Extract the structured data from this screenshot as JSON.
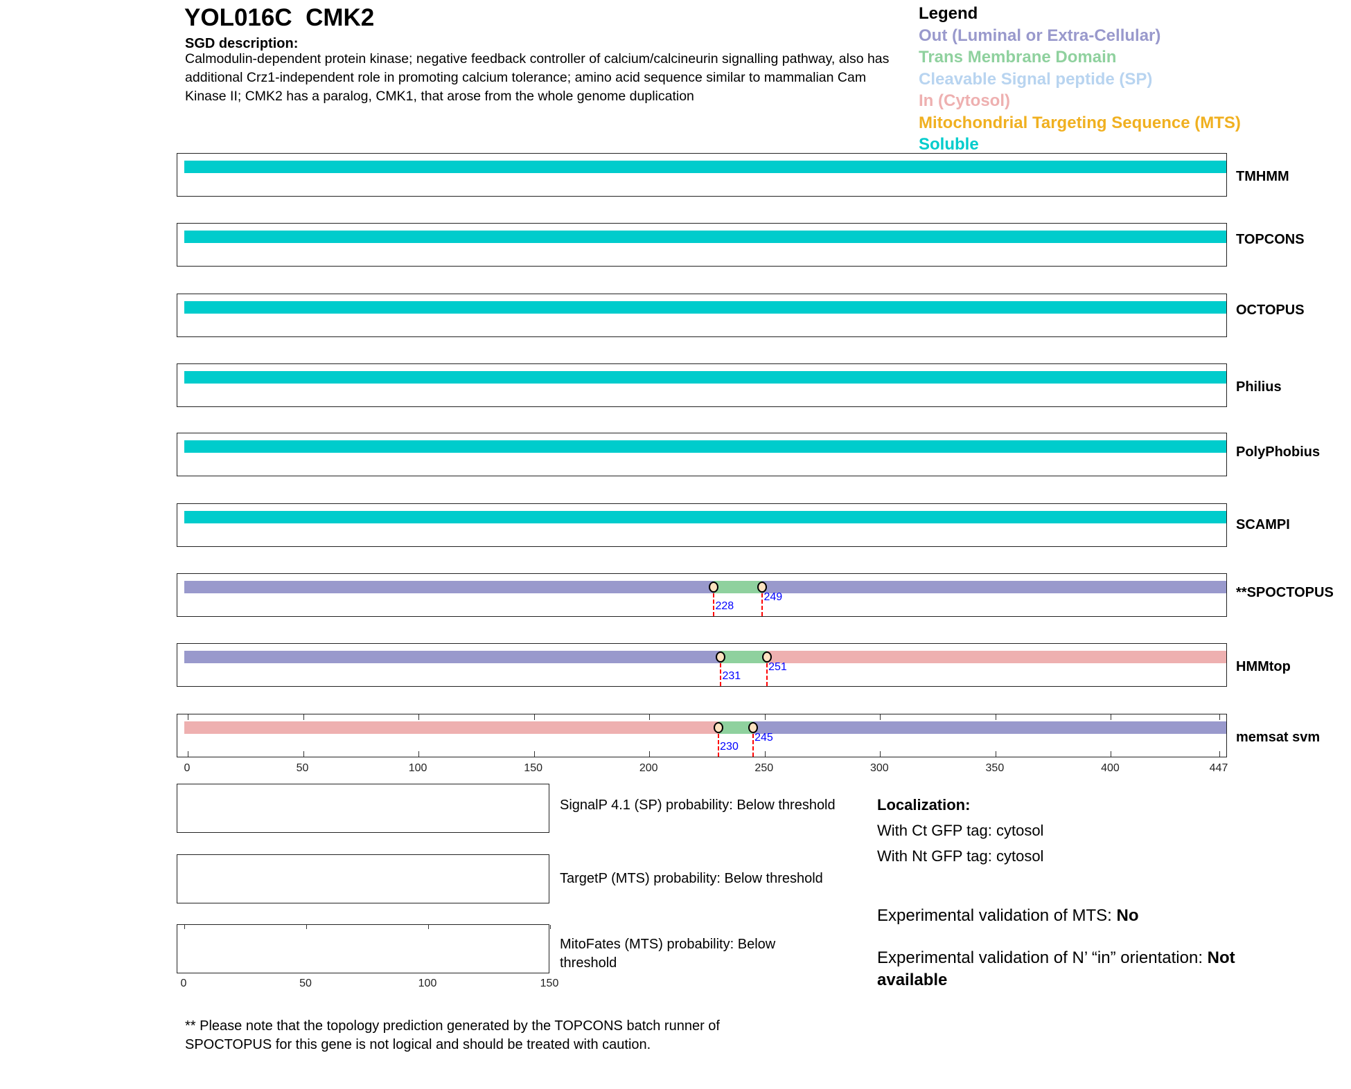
{
  "header": {
    "title": "YOL016C  CMK2",
    "description_label": "SGD description:",
    "description": "Calmodulin-dependent protein kinase; negative feedback controller of calcium/calcineurin signalling pathway, also has additional Crz1-independent role in promoting calcium tolerance; amino acid sequence similar to mammalian Cam Kinase II; CMK2 has a paralog, CMK1, that arose from the whole genome duplication"
  },
  "legend": {
    "title": "Legend",
    "items": [
      {
        "key": "out",
        "label": "Out (Luminal or Extra-Cellular)",
        "color": "#9999cc"
      },
      {
        "key": "tm",
        "label": "Trans Membrane Domain",
        "color": "#8fd19e"
      },
      {
        "key": "sp",
        "label": "Cleavable Signal peptide (SP)",
        "color": "#b8d4f0"
      },
      {
        "key": "in",
        "label": "In (Cytosol)",
        "color": "#eeb0b0"
      },
      {
        "key": "mts",
        "label": "Mitochondrial Targeting Sequence (MTS)",
        "color": "#f0b020"
      },
      {
        "key": "soluble",
        "label": "Soluble",
        "color": "#00cccc"
      }
    ]
  },
  "sequence_length": 447,
  "tracks": [
    {
      "name": "TMHMM",
      "segments": [
        {
          "type": "soluble",
          "start": 1,
          "end": 447
        }
      ],
      "boundaries": []
    },
    {
      "name": "TOPCONS",
      "segments": [
        {
          "type": "soluble",
          "start": 1,
          "end": 447
        }
      ],
      "boundaries": []
    },
    {
      "name": "OCTOPUS",
      "segments": [
        {
          "type": "soluble",
          "start": 1,
          "end": 447
        }
      ],
      "boundaries": []
    },
    {
      "name": "Philius",
      "segments": [
        {
          "type": "soluble",
          "start": 1,
          "end": 447
        }
      ],
      "boundaries": []
    },
    {
      "name": "PolyPhobius",
      "segments": [
        {
          "type": "soluble",
          "start": 1,
          "end": 447
        }
      ],
      "boundaries": []
    },
    {
      "name": "SCAMPI",
      "segments": [
        {
          "type": "soluble",
          "start": 1,
          "end": 447
        }
      ],
      "boundaries": []
    },
    {
      "name": "**SPOCTOPUS",
      "segments": [
        {
          "type": "out",
          "start": 1,
          "end": 228
        },
        {
          "type": "tm",
          "start": 228,
          "end": 249
        },
        {
          "type": "out",
          "start": 249,
          "end": 447
        }
      ],
      "boundaries": [
        "228",
        "249"
      ]
    },
    {
      "name": "HMMtop",
      "segments": [
        {
          "type": "out",
          "start": 1,
          "end": 231
        },
        {
          "type": "tm",
          "start": 231,
          "end": 251
        },
        {
          "type": "in",
          "start": 251,
          "end": 447
        }
      ],
      "boundaries": [
        "231",
        "251"
      ]
    },
    {
      "name": "memsat svm",
      "segments": [
        {
          "type": "in",
          "start": 1,
          "end": 230
        },
        {
          "type": "tm",
          "start": 230,
          "end": 245
        },
        {
          "type": "out",
          "start": 245,
          "end": 447
        }
      ],
      "boundaries": [
        "230",
        "245"
      ]
    }
  ],
  "axis": {
    "ticks": [
      "0",
      "50",
      "100",
      "150",
      "200",
      "250",
      "300",
      "350",
      "400",
      "447"
    ]
  },
  "probabilities": [
    {
      "label": "SignalP 4.1 (SP) probability: Below threshold"
    },
    {
      "label": "TargetP (MTS) probability: Below threshold"
    },
    {
      "label": "MitoFates (MTS) probability: Below threshold"
    }
  ],
  "small_axis": {
    "ticks": [
      "0",
      "50",
      "100",
      "150"
    ]
  },
  "localization": {
    "title": "Localization:",
    "ct_gfp": "With Ct GFP tag: cytosol",
    "nt_gfp": "With Nt GFP tag: cytosol",
    "mts_validation_label": "Experimental validation of MTS: ",
    "mts_validation_value": "No",
    "n_in_validation_label": "Experimental validation of N’ “in” orientation: ",
    "n_in_validation_value": "Not available"
  },
  "footnote": "** Please note that the topology prediction generated by the TOPCONS batch runner of SPOCTOPUS for this gene is not logical and should be treated with caution."
}
